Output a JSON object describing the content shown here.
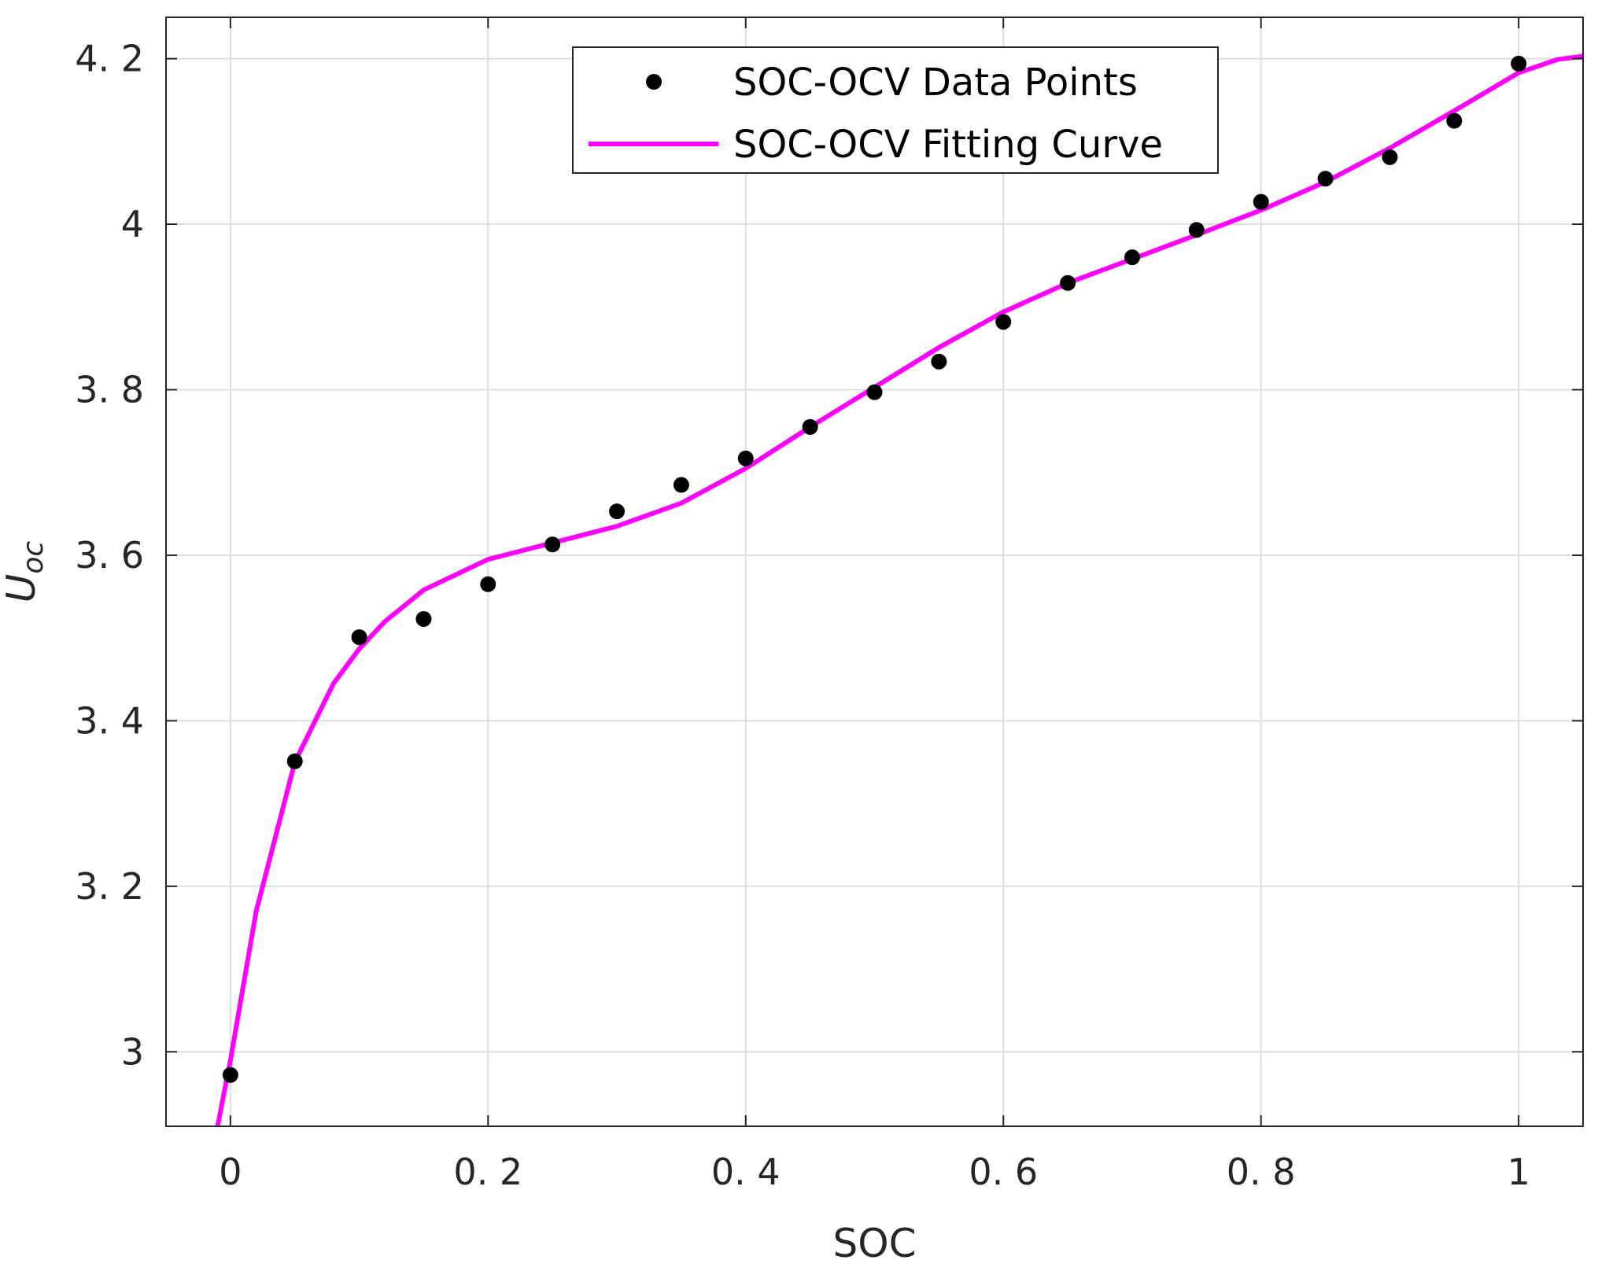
{
  "chart_data": {
    "type": "scatter",
    "title": "",
    "xlabel": "SOC",
    "ylabel": "Uoc",
    "xlim": [
      -0.05,
      1.05
    ],
    "ylim": [
      2.91,
      4.25
    ],
    "xticks": [
      0,
      0.2,
      0.4,
      0.6,
      0.8,
      1
    ],
    "xtick_labels": [
      "0",
      "0. 2",
      "0. 4",
      "0. 6",
      "0. 8",
      "1"
    ],
    "yticks": [
      3.0,
      3.2,
      3.4,
      3.6,
      3.8,
      4.0,
      4.2
    ],
    "ytick_labels": [
      "3",
      "3. 2",
      "3. 4",
      "3. 6",
      "3. 8",
      "4",
      "4. 2"
    ],
    "grid": true,
    "legend_position": "top-right",
    "series": [
      {
        "name": "SOC-OCV Data Points",
        "kind": "markers",
        "color": "#000000",
        "x": [
          0,
          0.05,
          0.1,
          0.15,
          0.2,
          0.25,
          0.3,
          0.35,
          0.4,
          0.45,
          0.5,
          0.55,
          0.6,
          0.65,
          0.7,
          0.75,
          0.8,
          0.85,
          0.9,
          0.95,
          1.0
        ],
        "y": [
          2.972,
          3.351,
          3.501,
          3.523,
          3.565,
          3.613,
          3.653,
          3.685,
          3.717,
          3.755,
          3.797,
          3.834,
          3.882,
          3.929,
          3.96,
          3.993,
          4.027,
          4.055,
          4.081,
          4.125,
          4.194
        ]
      },
      {
        "name": "SOC-OCV Fitting Curve",
        "kind": "line",
        "color": "#ff00ff",
        "x": [
          -0.01,
          0,
          0.02,
          0.05,
          0.08,
          0.1,
          0.12,
          0.15,
          0.2,
          0.25,
          0.3,
          0.35,
          0.4,
          0.45,
          0.5,
          0.55,
          0.6,
          0.65,
          0.7,
          0.75,
          0.8,
          0.85,
          0.9,
          0.95,
          1.0,
          1.03,
          1.05
        ],
        "y": [
          2.91,
          2.99,
          3.17,
          3.35,
          3.445,
          3.487,
          3.52,
          3.558,
          3.595,
          3.615,
          3.635,
          3.663,
          3.705,
          3.755,
          3.803,
          3.851,
          3.894,
          3.929,
          3.958,
          3.987,
          4.017,
          4.051,
          4.092,
          4.137,
          4.183,
          4.199,
          4.203
        ]
      }
    ]
  }
}
